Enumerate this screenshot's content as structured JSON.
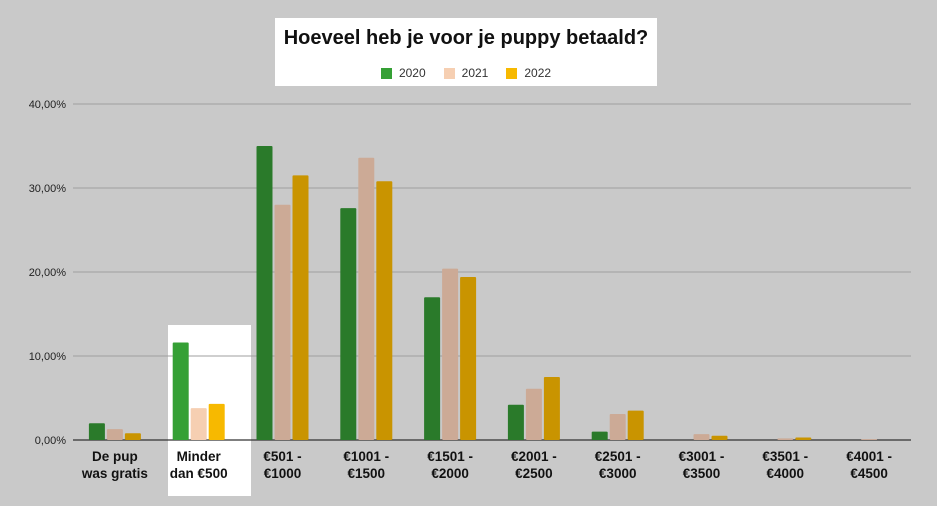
{
  "chart_data": {
    "type": "bar",
    "title": "Hoeveel heb je voor je puppy betaald?",
    "categories": [
      [
        "De pup",
        "was gratis"
      ],
      [
        "Minder",
        "dan €500"
      ],
      [
        "€501 -",
        "€1000"
      ],
      [
        "€1001 -",
        "€1500"
      ],
      [
        "€1501 -",
        "€2000"
      ],
      [
        "€2001 -",
        "€2500"
      ],
      [
        "€2501 -",
        "€3000"
      ],
      [
        "€3001 -",
        "€3500"
      ],
      [
        "€3501 -",
        "€4000"
      ],
      [
        "€4001 -",
        "€4500"
      ]
    ],
    "series": [
      {
        "name": "2020",
        "color": "#2a7a2a",
        "values": [
          2.0,
          11.6,
          35.0,
          27.6,
          17.0,
          4.2,
          1.0,
          0.0,
          0.0,
          0.0
        ]
      },
      {
        "name": "2021",
        "color": "#ccaa96",
        "values": [
          1.3,
          3.8,
          28.0,
          33.6,
          20.4,
          6.1,
          3.1,
          0.7,
          0.2,
          0.1
        ]
      },
      {
        "name": "2022",
        "color": "#c99400",
        "values": [
          0.8,
          4.3,
          31.5,
          30.8,
          19.4,
          7.5,
          3.5,
          0.5,
          0.3,
          0.0
        ]
      }
    ],
    "highlight_category_index": 1,
    "highlight_colors": [
      "#35a035",
      "#f6cfb2",
      "#f7b900"
    ],
    "legend_colors": [
      "#35a035",
      "#f6cfb2",
      "#f7b900"
    ],
    "yticks": [
      "0,00%",
      "10,00%",
      "20,00%",
      "30,00%",
      "40,00%"
    ],
    "ytick_values": [
      0,
      10,
      20,
      30,
      40
    ],
    "ylim": [
      0,
      40
    ],
    "grid": true,
    "legend_position": "top-center"
  }
}
